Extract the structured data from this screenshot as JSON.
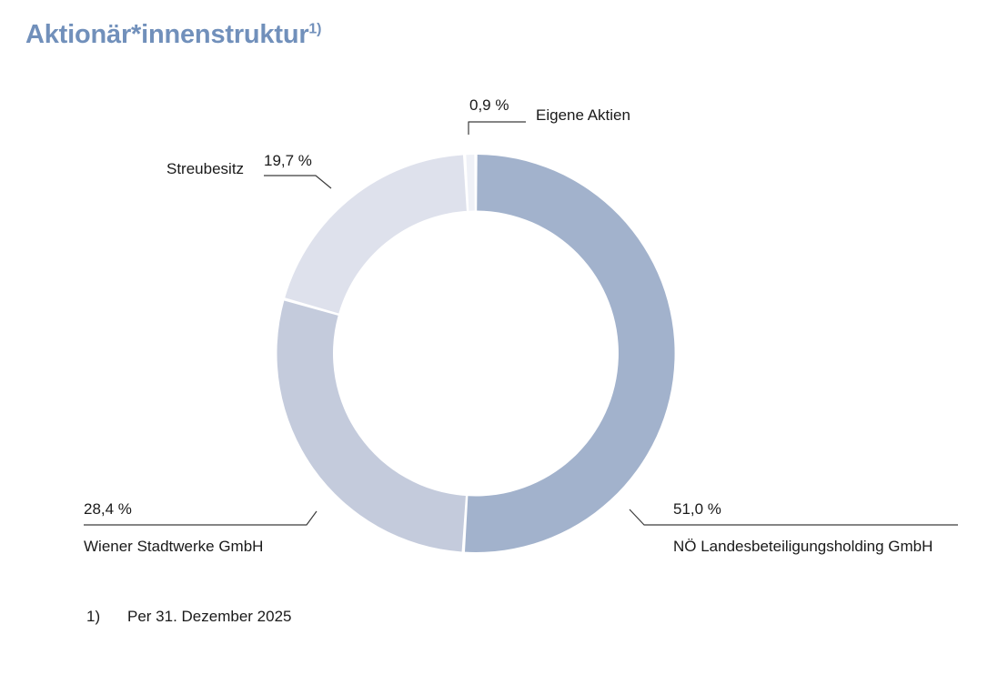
{
  "page": {
    "title": "Aktionär*innenstruktur",
    "title_superscript": "1)",
    "title_color": "#7190bb"
  },
  "footnote": {
    "marker": "1)",
    "text": "Per 31. Dezember 2025"
  },
  "chart_data": {
    "type": "pie",
    "subtype": "donut",
    "title": "Aktionär*innenstruktur",
    "unit": "%",
    "total": 100.0,
    "start_angle_deg": 0,
    "direction": "clockwise",
    "inner_radius_ratio": 0.72,
    "separator_color": "#ffffff",
    "leader_line_color": "#3c3c3c",
    "segments": [
      {
        "id": "noe-landesbeteiligungsholding",
        "label": "NÖ Landesbeteiligungsholding GmbH",
        "value": 51.0,
        "value_label": "51,0 %",
        "color": "#a2b2cc"
      },
      {
        "id": "wiener-stadtwerke",
        "label": "Wiener Stadtwerke GmbH",
        "value": 28.4,
        "value_label": "28,4 %",
        "color": "#c4cbdc"
      },
      {
        "id": "streubesitz",
        "label": "Streubesitz",
        "value": 19.7,
        "value_label": "19,7 %",
        "color": "#dee1ec"
      },
      {
        "id": "eigene-aktien",
        "label": "Eigene Aktien",
        "value": 0.9,
        "value_label": "0,9 %",
        "color": "#eff1f7"
      }
    ]
  }
}
